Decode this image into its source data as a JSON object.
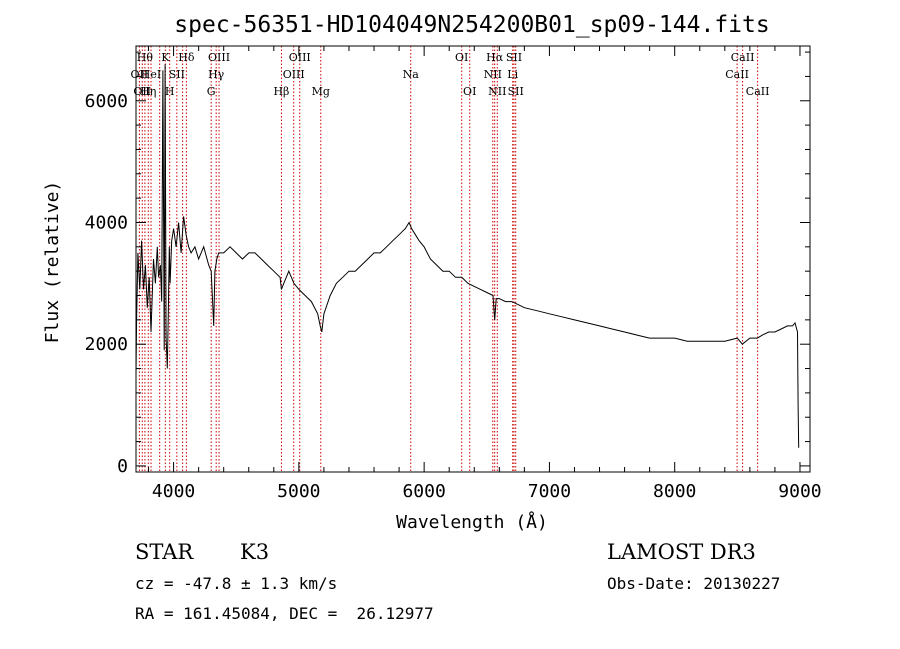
{
  "chart_data": {
    "type": "line",
    "title": "spec-56351-HD104049N254200B01_sp09-144.fits",
    "xlabel": "Wavelength (Å)",
    "ylabel": "Flux (relative)",
    "xlim": [
      3700,
      9080
    ],
    "ylim": [
      -100,
      6900
    ],
    "x_ticks": [
      4000,
      5000,
      6000,
      7000,
      8000,
      9000
    ],
    "y_ticks": [
      0,
      2000,
      4000,
      6000
    ],
    "grid": false,
    "series": [
      {
        "x": [
          3700,
          3705,
          3715,
          3730,
          3745,
          3760,
          3775,
          3790,
          3805,
          3820,
          3840,
          3855,
          3870,
          3880,
          3895,
          3905,
          3915,
          3925,
          3932,
          3940,
          3950,
          3958,
          3966,
          3972,
          3985,
          4000,
          4020,
          4040,
          4060,
          4080,
          4100,
          4120,
          4140,
          4170,
          4200,
          4240,
          4280,
          4300,
          4320,
          4330,
          4345,
          4360,
          4400,
          4450,
          4500,
          4550,
          4600,
          4650,
          4700,
          4750,
          4800,
          4850,
          4861,
          4880,
          4920,
          4960,
          5000,
          5050,
          5100,
          5150,
          5170,
          5183,
          5200,
          5250,
          5300,
          5350,
          5400,
          5450,
          5500,
          5550,
          5600,
          5650,
          5700,
          5750,
          5800,
          5850,
          5880,
          5900,
          5930,
          5960,
          6000,
          6050,
          6100,
          6150,
          6200,
          6250,
          6300,
          6350,
          6400,
          6450,
          6500,
          6550,
          6563,
          6575,
          6600,
          6650,
          6700,
          6750,
          6800,
          6900,
          7000,
          7100,
          7200,
          7300,
          7400,
          7500,
          7600,
          7700,
          7800,
          7900,
          8000,
          8100,
          8200,
          8300,
          8400,
          8500,
          8540,
          8600,
          8660,
          8700,
          8750,
          8800,
          8850,
          8900,
          8940,
          8960,
          8980,
          8985,
          8990
        ],
        "y": [
          1500,
          2400,
          3500,
          2900,
          3700,
          2900,
          3300,
          2600,
          3100,
          2200,
          3400,
          3000,
          3600,
          3100,
          3300,
          2700,
          6500,
          1900,
          6600,
          2100,
          1600,
          2500,
          3600,
          3000,
          3700,
          3900,
          3600,
          4000,
          3500,
          4100,
          3800,
          3600,
          3500,
          3600,
          3400,
          3600,
          3300,
          3200,
          2300,
          3200,
          3400,
          3500,
          3500,
          3600,
          3500,
          3400,
          3500,
          3500,
          3400,
          3300,
          3200,
          3100,
          2900,
          3000,
          3200,
          3000,
          2900,
          2800,
          2700,
          2500,
          2300,
          2200,
          2500,
          2800,
          3000,
          3100,
          3200,
          3200,
          3300,
          3400,
          3500,
          3500,
          3600,
          3700,
          3800,
          3900,
          4000,
          3900,
          3800,
          3700,
          3600,
          3400,
          3300,
          3200,
          3200,
          3100,
          3100,
          3000,
          2950,
          2900,
          2850,
          2800,
          2400,
          2750,
          2750,
          2700,
          2700,
          2650,
          2600,
          2550,
          2500,
          2450,
          2400,
          2350,
          2300,
          2250,
          2200,
          2150,
          2100,
          2100,
          2100,
          2050,
          2050,
          2050,
          2050,
          2100,
          2000,
          2100,
          2100,
          2150,
          2200,
          2200,
          2250,
          2300,
          2300,
          2350,
          2200,
          1000,
          300
        ]
      }
    ],
    "line_markers": [
      {
        "wave": 3727,
        "label": "OII",
        "row": 2
      },
      {
        "wave": 3750,
        "label": "OII",
        "row": 3
      },
      {
        "wave": 3771,
        "label": "Hθ",
        "row": 1
      },
      {
        "wave": 3798,
        "label": "Hη",
        "row": 3
      },
      {
        "wave": 3820,
        "label": "HeI",
        "row": 2
      },
      {
        "wave": 3889,
        "label": "",
        "row": 0
      },
      {
        "wave": 3934,
        "label": "K",
        "row": 1
      },
      {
        "wave": 3969,
        "label": "H",
        "row": 3
      },
      {
        "wave": 4026,
        "label": "SII",
        "row": 2
      },
      {
        "wave": 4072,
        "label": "",
        "row": 0
      },
      {
        "wave": 4102,
        "label": "Hδ",
        "row": 1
      },
      {
        "wave": 4300,
        "label": "G",
        "row": 3
      },
      {
        "wave": 4340,
        "label": "Hγ",
        "row": 2
      },
      {
        "wave": 4363,
        "label": "OIII",
        "row": 1
      },
      {
        "wave": 4861,
        "label": "Hβ",
        "row": 3
      },
      {
        "wave": 4959,
        "label": "OIII",
        "row": 2
      },
      {
        "wave": 5007,
        "label": "OIII",
        "row": 1
      },
      {
        "wave": 5175,
        "label": "Mg",
        "row": 3
      },
      {
        "wave": 5893,
        "label": "Na",
        "row": 2
      },
      {
        "wave": 6300,
        "label": "OI",
        "row": 1
      },
      {
        "wave": 6364,
        "label": "OI",
        "row": 3
      },
      {
        "wave": 6548,
        "label": "NII",
        "row": 2
      },
      {
        "wave": 6563,
        "label": "Hα",
        "row": 1
      },
      {
        "wave": 6584,
        "label": "NII",
        "row": 3
      },
      {
        "wave": 6707,
        "label": "Li",
        "row": 2
      },
      {
        "wave": 6717,
        "label": "SII",
        "row": 1
      },
      {
        "wave": 6731,
        "label": "SII",
        "row": 3
      },
      {
        "wave": 8498,
        "label": "CaII",
        "row": 2
      },
      {
        "wave": 8542,
        "label": "CaII",
        "row": 1
      },
      {
        "wave": 8662,
        "label": "CaII",
        "row": 3
      }
    ],
    "marker_color": "#cc0000"
  },
  "info": {
    "object_class": "STAR",
    "subclass": "K3",
    "survey": "LAMOST DR3",
    "cz": "cz = -47.8 ± 1.3 km/s",
    "obs_date": "Obs-Date: 20130227",
    "radec": "RA = 161.45084, DEC =  26.12977"
  }
}
